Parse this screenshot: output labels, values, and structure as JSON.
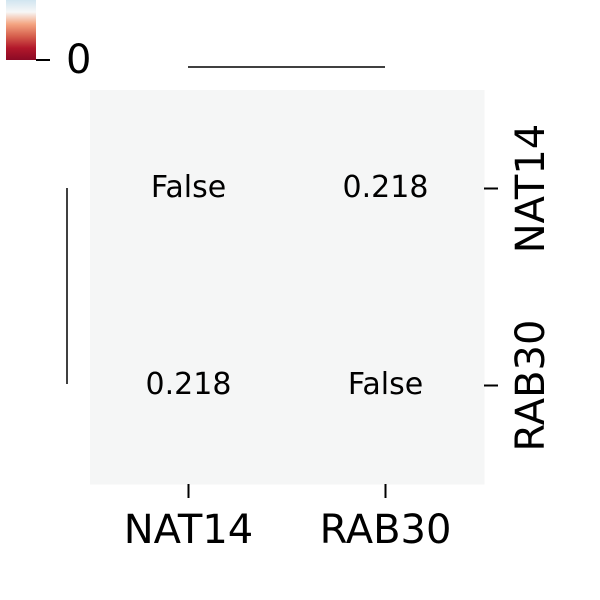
{
  "chart_data": {
    "type": "heatmap",
    "rows": [
      "NAT14",
      "RAB30"
    ],
    "columns": [
      "NAT14",
      "RAB30"
    ],
    "values": [
      [
        null,
        0.218
      ],
      [
        0.218,
        null
      ]
    ],
    "value_labels": [
      [
        "False",
        "0.218"
      ],
      [
        "0.218",
        "False"
      ]
    ],
    "cell_color": "#f5f6f6",
    "colormap": [
      "#d1e5f0",
      "#f7f7f7",
      "#f4a582",
      "#d6604d",
      "#b2182b",
      "#8b0a25"
    ],
    "colorbar_ticks": [
      0
    ]
  }
}
